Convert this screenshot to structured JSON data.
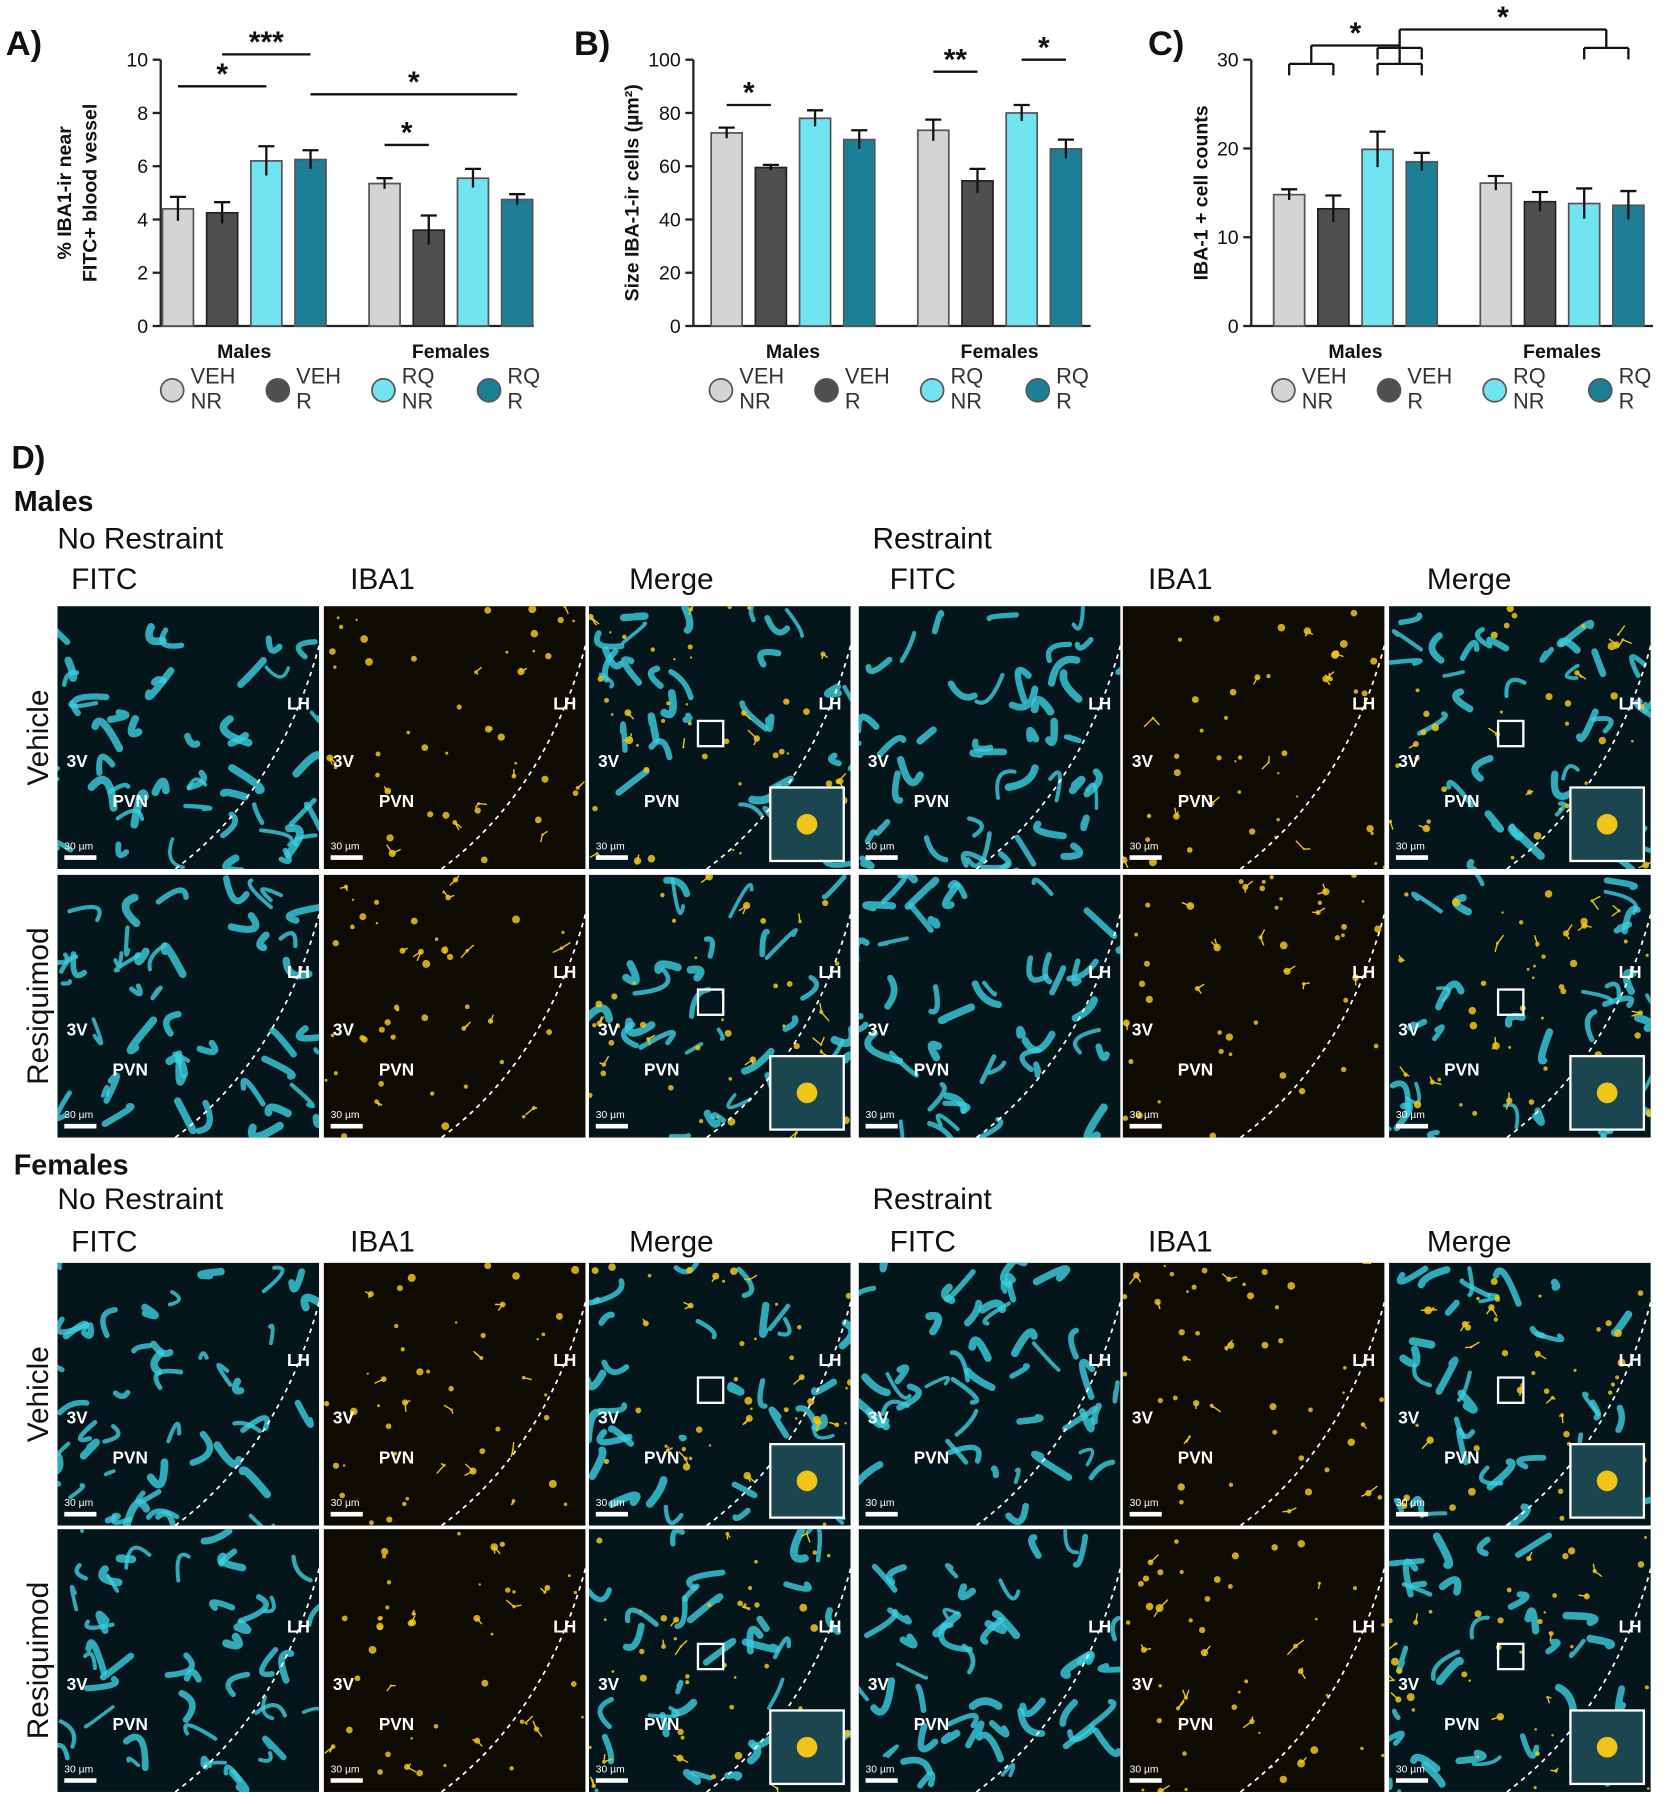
{
  "chart_data": [
    {
      "type": "bar",
      "panel_label": "A)",
      "ylabel": [
        "% IBA1-ir near",
        "FITC+ blood vessel"
      ],
      "categories": [
        "Males",
        "Females"
      ],
      "ylim": [
        0,
        10
      ],
      "yticks": [
        0,
        2,
        4,
        6,
        8,
        10
      ],
      "series": [
        {
          "name": "VEH NR",
          "color": "#d4d4d4",
          "values": [
            4.4,
            5.35
          ],
          "errors": [
            0.45,
            0.2
          ]
        },
        {
          "name": "VEH R",
          "color": "#4f4f4f",
          "values": [
            4.25,
            3.6
          ],
          "errors": [
            0.4,
            0.55
          ]
        },
        {
          "name": "RQ NR",
          "color": "#72e3f1",
          "values": [
            6.2,
            5.55
          ],
          "errors": [
            0.55,
            0.35
          ]
        },
        {
          "name": "RQ R",
          "color": "#1d7f95",
          "values": [
            6.25,
            4.75
          ],
          "errors": [
            0.35,
            0.2
          ]
        }
      ],
      "annotations": [
        {
          "text": "*",
          "from": [
            [
              0,
              0
            ]
          ],
          "to": [
            [
              0,
              2
            ]
          ],
          "y": 9.0
        },
        {
          "text": "***",
          "from": [
            [
              0,
              1
            ]
          ],
          "to": [
            [
              0,
              3
            ]
          ],
          "y": 10.2
        },
        {
          "text": "*",
          "from": [
            [
              0,
              3
            ]
          ],
          "to": [
            [
              1,
              3
            ]
          ],
          "y": 8.7
        },
        {
          "text": "*",
          "from": [
            [
              1,
              0
            ]
          ],
          "to": [
            [
              1,
              1
            ]
          ],
          "y": 6.8
        }
      ]
    },
    {
      "type": "bar",
      "panel_label": "B)",
      "ylabel": [
        "Size IBA-1-ir cells (µm²)"
      ],
      "categories": [
        "Males",
        "Females"
      ],
      "ylim": [
        0,
        100
      ],
      "yticks": [
        0,
        20,
        40,
        60,
        80,
        100
      ],
      "series": [
        {
          "name": "VEH NR",
          "color": "#d4d4d4",
          "values": [
            72.5,
            73.5
          ],
          "errors": [
            2,
            4
          ]
        },
        {
          "name": "VEH R",
          "color": "#4f4f4f",
          "values": [
            59.5,
            54.5
          ],
          "errors": [
            1,
            4.5
          ]
        },
        {
          "name": "RQ NR",
          "color": "#72e3f1",
          "values": [
            78,
            80
          ],
          "errors": [
            3,
            3
          ]
        },
        {
          "name": "RQ R",
          "color": "#1d7f95",
          "values": [
            70,
            66.5
          ],
          "errors": [
            3.5,
            3.5
          ]
        }
      ],
      "annotations": [
        {
          "text": "*",
          "from": [
            [
              0,
              0
            ]
          ],
          "to": [
            [
              0,
              1
            ]
          ],
          "y": 83
        },
        {
          "text": "**",
          "from": [
            [
              1,
              0
            ]
          ],
          "to": [
            [
              1,
              1
            ]
          ],
          "y": 95.5
        },
        {
          "text": "*",
          "from": [
            [
              1,
              2
            ]
          ],
          "to": [
            [
              1,
              3
            ]
          ],
          "y": 100
        }
      ]
    },
    {
      "type": "bar",
      "panel_label": "C)",
      "ylabel": [
        "IBA-1 + cell counts"
      ],
      "categories": [
        "Males",
        "Females"
      ],
      "ylim": [
        0,
        30
      ],
      "yticks": [
        0,
        10,
        20,
        30
      ],
      "series": [
        {
          "name": "VEH NR",
          "color": "#d4d4d4",
          "values": [
            14.8,
            16.1
          ],
          "errors": [
            0.6,
            0.8
          ]
        },
        {
          "name": "VEH R",
          "color": "#4f4f4f",
          "values": [
            13.2,
            14
          ],
          "errors": [
            1.5,
            1.1
          ]
        },
        {
          "name": "RQ NR",
          "color": "#72e3f1",
          "values": [
            19.9,
            13.8
          ],
          "errors": [
            2,
            1.7
          ]
        },
        {
          "name": "RQ R",
          "color": "#1d7f95",
          "values": [
            18.5,
            13.6
          ],
          "errors": [
            1,
            1.6
          ]
        }
      ],
      "annotations": [
        {
          "text": "*",
          "from": [
            [
              0,
              0
            ],
            [
              0,
              1
            ]
          ],
          "to": [
            [
              0,
              2
            ],
            [
              0,
              3
            ]
          ],
          "y": 31.6
        },
        {
          "text": "*",
          "from": [
            [
              0,
              2
            ],
            [
              0,
              3
            ]
          ],
          "to": [
            [
              1,
              2
            ],
            [
              1,
              3
            ]
          ],
          "y": 33.4
        }
      ]
    }
  ],
  "panel_d": {
    "label": "D)",
    "sections": [
      {
        "title": "Males",
        "conditions": [
          "No Restraint",
          "Restraint"
        ],
        "channels": [
          "FITC",
          "IBA1",
          "Merge"
        ],
        "treatments": [
          "Vehicle",
          "Resiquimod"
        ]
      },
      {
        "title": "Females",
        "conditions": [
          "No Restraint",
          "Restraint"
        ],
        "channels": [
          "FITC",
          "IBA1",
          "Merge"
        ],
        "treatments": [
          "Vehicle",
          "Resiquimod"
        ]
      }
    ],
    "regions": [
      "3V",
      "PVN",
      "LH"
    ],
    "scale_bar": "30 µm"
  }
}
